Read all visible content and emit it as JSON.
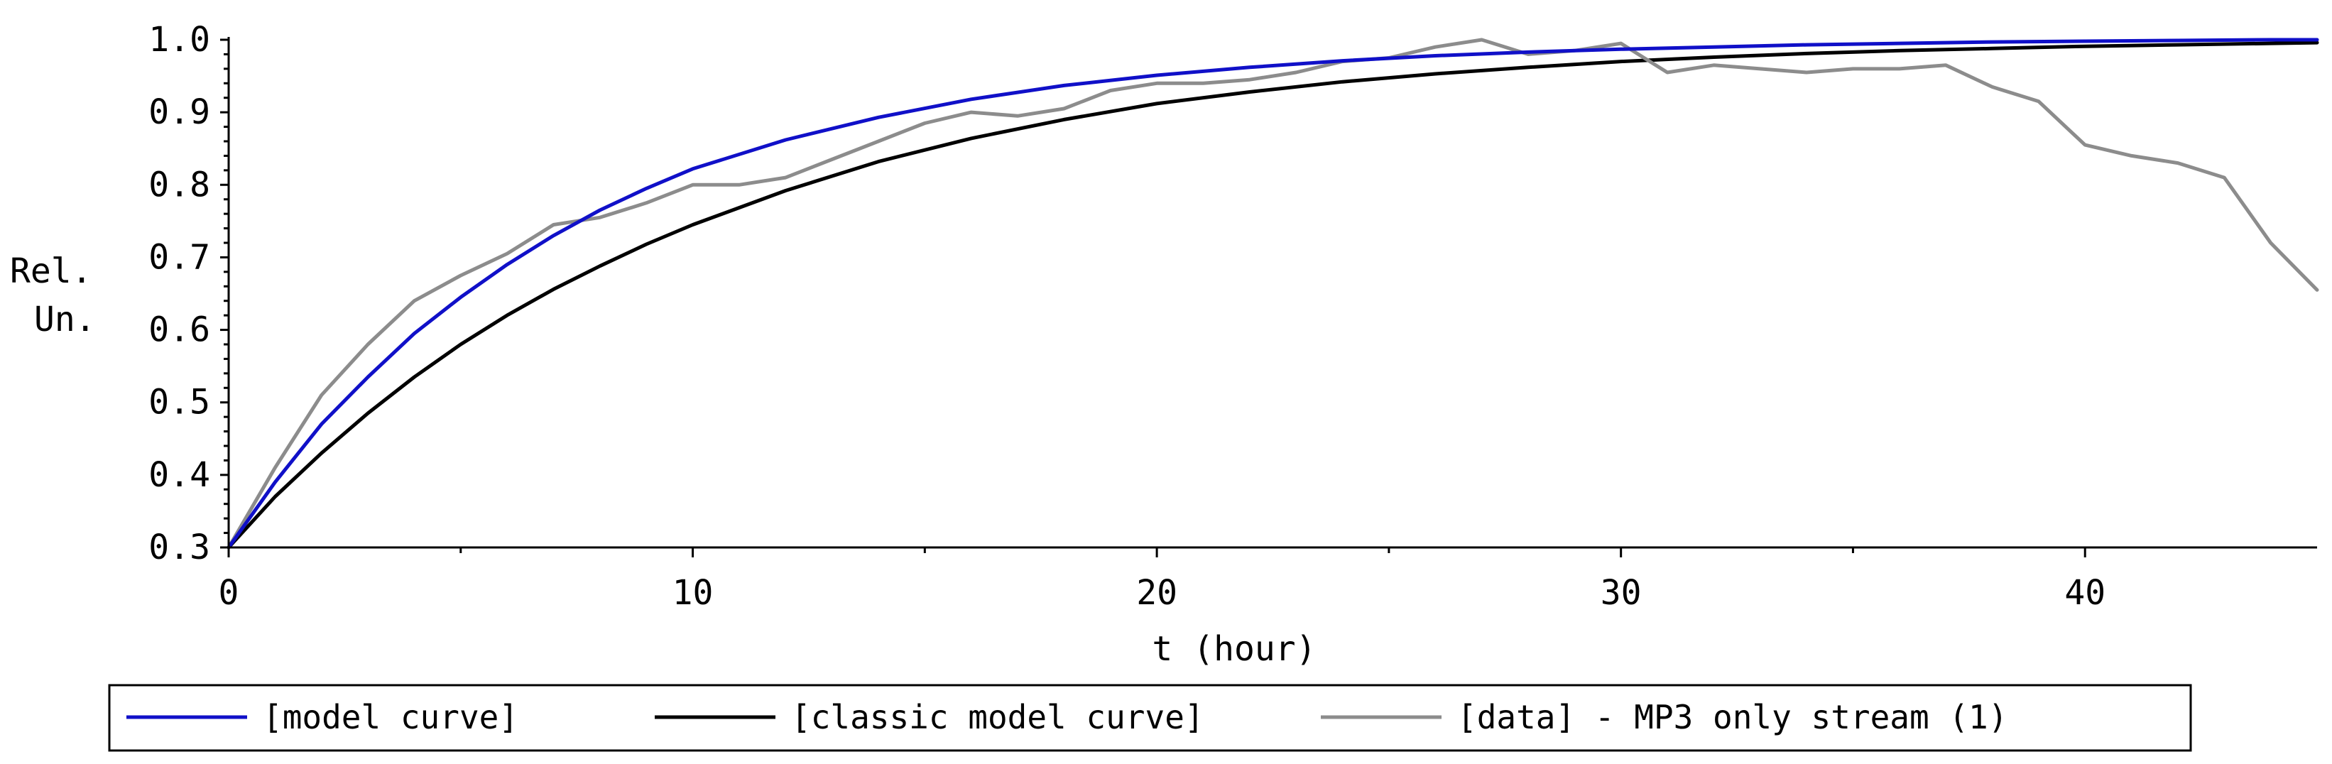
{
  "chart_data": {
    "type": "line",
    "title": "",
    "xlabel": "t (hour)",
    "ylabel_lines": [
      "Rel.",
      "Un."
    ],
    "xlim": [
      0,
      45
    ],
    "ylim": [
      0.3,
      1.0
    ],
    "x_ticks": [
      0,
      10,
      20,
      30,
      40
    ],
    "x_tick_labels": [
      "0",
      "10",
      "20",
      "30",
      "40"
    ],
    "y_ticks": [
      0.3,
      0.4,
      0.5,
      0.6,
      0.7,
      0.8,
      0.9,
      1.0
    ],
    "y_tick_labels": [
      "0.3",
      "0.4",
      "0.5",
      "0.6",
      "0.7",
      "0.8",
      "0.9",
      "1.0"
    ],
    "grid": false,
    "legend_position": "bottom",
    "series": [
      {
        "name": "[model curve]",
        "color": "#1010c8",
        "x": [
          0,
          1,
          2,
          3,
          4,
          5,
          6,
          7,
          8,
          9,
          10,
          12,
          14,
          16,
          18,
          20,
          22,
          24,
          26,
          28,
          30,
          32,
          34,
          36,
          38,
          40,
          42,
          44,
          45
        ],
        "y": [
          0.3,
          0.39,
          0.47,
          0.535,
          0.595,
          0.645,
          0.69,
          0.73,
          0.765,
          0.795,
          0.822,
          0.862,
          0.893,
          0.918,
          0.937,
          0.951,
          0.962,
          0.971,
          0.978,
          0.983,
          0.987,
          0.99,
          0.993,
          0.995,
          0.997,
          0.998,
          0.999,
          1.0,
          1.0
        ]
      },
      {
        "name": "[classic model curve]",
        "color": "#000000",
        "x": [
          0,
          1,
          2,
          3,
          4,
          5,
          6,
          7,
          8,
          9,
          10,
          12,
          14,
          16,
          18,
          20,
          22,
          24,
          26,
          28,
          30,
          32,
          34,
          36,
          38,
          40,
          42,
          44,
          45
        ],
        "y": [
          0.3,
          0.37,
          0.43,
          0.485,
          0.535,
          0.58,
          0.62,
          0.656,
          0.688,
          0.718,
          0.745,
          0.792,
          0.832,
          0.864,
          0.89,
          0.912,
          0.928,
          0.942,
          0.953,
          0.962,
          0.97,
          0.976,
          0.981,
          0.985,
          0.988,
          0.991,
          0.993,
          0.995,
          0.996
        ]
      },
      {
        "name": "[data] - MP3 only stream (1)",
        "color": "#8c8c8c",
        "x": [
          0,
          1,
          2,
          3,
          4,
          5,
          6,
          7,
          8,
          9,
          10,
          11,
          12,
          13,
          14,
          15,
          16,
          17,
          18,
          19,
          20,
          21,
          22,
          23,
          24,
          25,
          26,
          27,
          28,
          29,
          30,
          31,
          32,
          33,
          34,
          35,
          36,
          37,
          38,
          39,
          40,
          41,
          42,
          43,
          44,
          45
        ],
        "y": [
          0.3,
          0.41,
          0.51,
          0.58,
          0.64,
          0.675,
          0.705,
          0.745,
          0.755,
          0.775,
          0.8,
          0.8,
          0.81,
          0.835,
          0.86,
          0.885,
          0.9,
          0.895,
          0.905,
          0.93,
          0.94,
          0.94,
          0.945,
          0.955,
          0.97,
          0.975,
          0.99,
          1.0,
          0.98,
          0.985,
          0.995,
          0.955,
          0.965,
          0.96,
          0.955,
          0.96,
          0.96,
          0.965,
          0.935,
          0.915,
          0.855,
          0.84,
          0.83,
          0.81,
          0.72,
          0.655
        ]
      }
    ]
  }
}
